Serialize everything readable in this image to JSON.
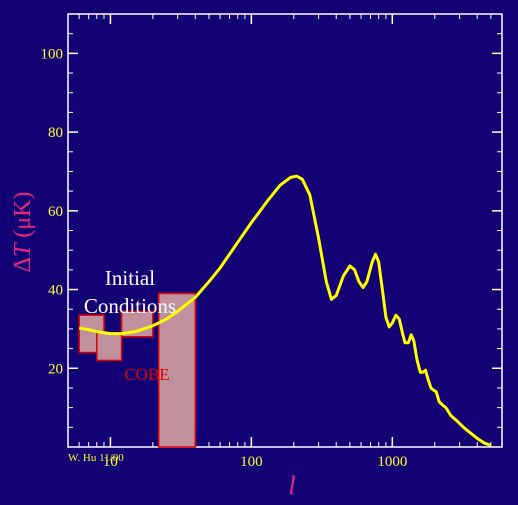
{
  "chart_data": {
    "type": "line",
    "xscale": "log",
    "xlim": [
      5,
      6000
    ],
    "ylim": [
      0,
      110
    ],
    "xlabel": "l",
    "ylabel_symbol": "ΔT",
    "ylabel_italic": "T",
    "ylabel_unit": "(μK)",
    "x_ticks": [
      {
        "value": 10,
        "label": "10"
      },
      {
        "value": 100,
        "label": "100"
      },
      {
        "value": 1000,
        "label": "1000"
      }
    ],
    "y_ticks": [
      {
        "value": 20,
        "label": "20"
      },
      {
        "value": 40,
        "label": "40"
      },
      {
        "value": 60,
        "label": "60"
      },
      {
        "value": 80,
        "label": "80"
      },
      {
        "value": 100,
        "label": "100"
      }
    ],
    "series": [
      {
        "color": "#ffff00",
        "points": [
          [
            6,
            30.2
          ],
          [
            7,
            29.8
          ],
          [
            8,
            29.3
          ],
          [
            10,
            28.8
          ],
          [
            12,
            28.8
          ],
          [
            15,
            29.3
          ],
          [
            20,
            30.8
          ],
          [
            25,
            32.5
          ],
          [
            30,
            34.5
          ],
          [
            40,
            38
          ],
          [
            50,
            42
          ],
          [
            60,
            45.5
          ],
          [
            80,
            52
          ],
          [
            100,
            57
          ],
          [
            130,
            62.5
          ],
          [
            160,
            66.5
          ],
          [
            190,
            68.5
          ],
          [
            210,
            68.8
          ],
          [
            230,
            68
          ],
          [
            260,
            64
          ],
          [
            300,
            53
          ],
          [
            340,
            42
          ],
          [
            370,
            37.5
          ],
          [
            400,
            38.5
          ],
          [
            450,
            43.5
          ],
          [
            500,
            46
          ],
          [
            540,
            45
          ],
          [
            580,
            42
          ],
          [
            620,
            40.5
          ],
          [
            660,
            42
          ],
          [
            720,
            47
          ],
          [
            760,
            49
          ],
          [
            800,
            47
          ],
          [
            850,
            40
          ],
          [
            900,
            33
          ],
          [
            950,
            30.5
          ],
          [
            1000,
            31.5
          ],
          [
            1060,
            33.5
          ],
          [
            1120,
            32.5
          ],
          [
            1180,
            29
          ],
          [
            1230,
            26.5
          ],
          [
            1300,
            26.5
          ],
          [
            1360,
            28.5
          ],
          [
            1420,
            27
          ],
          [
            1500,
            22
          ],
          [
            1580,
            19
          ],
          [
            1650,
            19
          ],
          [
            1720,
            19.5
          ],
          [
            1800,
            17
          ],
          [
            1880,
            15
          ],
          [
            1950,
            14.5
          ],
          [
            2050,
            14
          ],
          [
            2150,
            11.5
          ],
          [
            2300,
            10.5
          ],
          [
            2400,
            10
          ],
          [
            2600,
            8
          ],
          [
            2900,
            6.5
          ],
          [
            3200,
            5
          ],
          [
            3600,
            3.5
          ],
          [
            4000,
            2.2
          ],
          [
            4500,
            1
          ],
          [
            5000,
            0.4
          ]
        ]
      }
    ],
    "boxes": [
      {
        "x0": 6,
        "x1": 9,
        "y0": 24,
        "y1": 33.5
      },
      {
        "x0": 8,
        "x1": 12,
        "y0": 22,
        "y1": 29
      },
      {
        "x0": 12,
        "x1": 20,
        "y0": 28,
        "y1": 34.5
      },
      {
        "x0": 22,
        "x1": 40,
        "y0": 0,
        "y1": 39
      }
    ],
    "annotations": {
      "initial_line1": "Initial",
      "initial_line2": "Conditions",
      "cobe": "COBE",
      "credit": "W. Hu 11/00"
    }
  }
}
